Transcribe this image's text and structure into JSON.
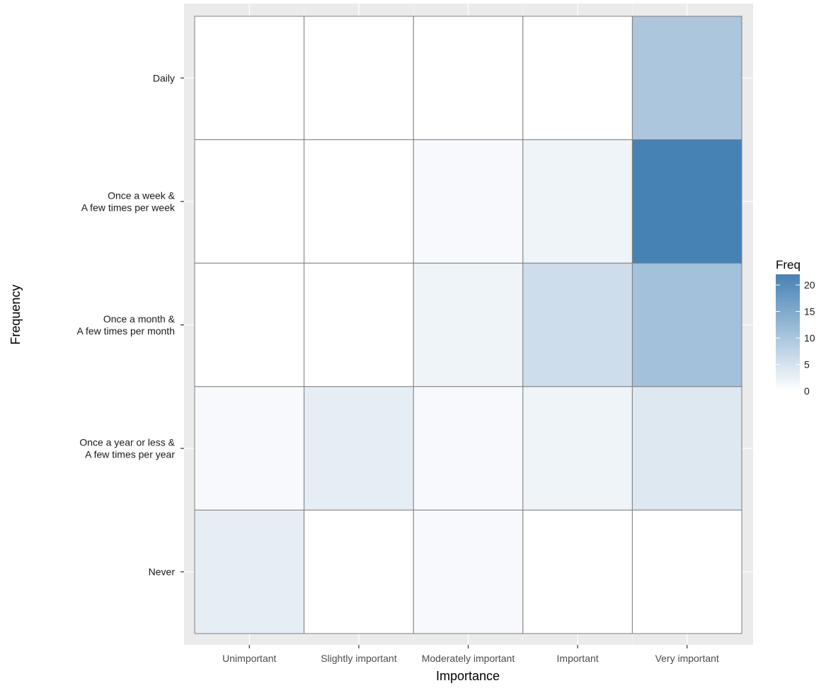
{
  "chart_data": {
    "type": "heatmap",
    "title": "",
    "xlabel": "Importance",
    "ylabel": "Frequency",
    "x_categories": [
      "Unimportant",
      "Slightly important",
      "Moderately important",
      "Important",
      "Very important"
    ],
    "y_categories": [
      [
        "Daily"
      ],
      [
        "Once a week &",
        "A few times per week"
      ],
      [
        "Once a month &",
        "A few times per month"
      ],
      [
        "Once a year or less &",
        "A few times per year"
      ],
      [
        "Never"
      ]
    ],
    "values": [
      [
        0,
        0,
        0,
        0,
        10
      ],
      [
        0,
        0,
        1,
        2,
        22
      ],
      [
        0,
        0,
        2,
        6,
        11
      ],
      [
        1,
        3,
        1,
        2,
        4
      ],
      [
        3,
        0,
        1,
        0,
        0
      ]
    ],
    "legend": {
      "title": "Freq",
      "ticks": [
        0,
        5,
        10,
        15,
        20
      ],
      "range": [
        0,
        22
      ],
      "low_color": "#ffffff",
      "high_color": "#4682b4",
      "position": "right"
    },
    "grid": true,
    "panel_background": "#ebebeb",
    "cell_border_color": "#7f7f7f"
  }
}
